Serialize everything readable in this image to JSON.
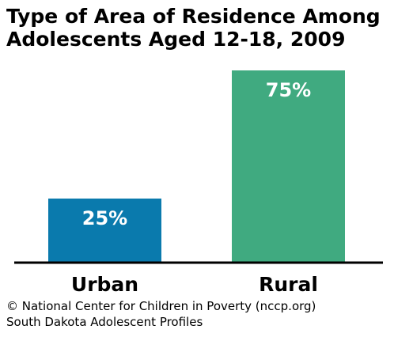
{
  "chart_data": {
    "type": "bar",
    "title_lines": [
      "Type of Area of Residence Among",
      "Adolescents Aged 12-18, 2009"
    ],
    "categories": [
      "Urban",
      "Rural"
    ],
    "values": [
      25,
      75
    ],
    "value_labels": [
      "25%",
      "75%"
    ],
    "ylim": [
      0,
      100
    ],
    "grid": false,
    "bar_colors": [
      "#0a7aad",
      "#40aa80"
    ],
    "label_color": "#ffffff"
  },
  "footer": {
    "credit": "© National Center for Children in Poverty (nccp.org)",
    "source": "South Dakota Adolescent Profiles"
  }
}
